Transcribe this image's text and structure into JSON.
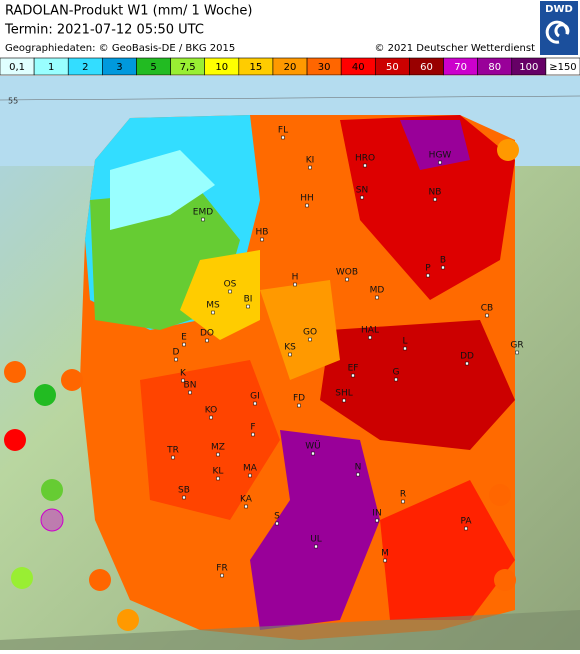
{
  "header": {
    "title": "RADOLAN-Produkt W1 (mm/ 1 Woche)",
    "termin": "Termin: 2021-07-12 05:50 UTC",
    "geodata": "Geographiedaten: © GeoBasis-DE / BKG 2015",
    "copyright": "© 2021 Deutscher Wetterdienst",
    "logo": "DWD"
  },
  "legend": [
    {
      "label": "0,1",
      "color": "#e0ffff"
    },
    {
      "label": "1",
      "color": "#99ffff"
    },
    {
      "label": "2",
      "color": "#33ddff"
    },
    {
      "label": "3",
      "color": "#0099dd"
    },
    {
      "label": "5",
      "color": "#22bb22"
    },
    {
      "label": "7,5",
      "color": "#99ee33"
    },
    {
      "label": "10",
      "color": "#ffff00"
    },
    {
      "label": "15",
      "color": "#ffcc00"
    },
    {
      "label": "20",
      "color": "#ff9900"
    },
    {
      "label": "30",
      "color": "#ff6600"
    },
    {
      "label": "40",
      "color": "#ff0000"
    },
    {
      "label": "50",
      "color": "#cc0000"
    },
    {
      "label": "60",
      "color": "#990000"
    },
    {
      "label": "70",
      "color": "#cc00cc"
    },
    {
      "label": "80",
      "color": "#990099"
    },
    {
      "label": "100",
      "color": "#660066"
    },
    {
      "label": "≥150",
      "color": "#ffffff"
    }
  ],
  "map": {
    "graticule_label": "55",
    "cities": [
      "FL",
      "KI",
      "HRO",
      "HGW",
      "SN",
      "NB",
      "HH",
      "EMD",
      "HB",
      "H",
      "WOB",
      "P",
      "B",
      "MD",
      "OS",
      "BI",
      "MS",
      "CB",
      "GO",
      "HAL",
      "L",
      "DD",
      "GR",
      "E",
      "DO",
      "KS",
      "EF",
      "G",
      "D",
      "K",
      "BN",
      "GI",
      "FD",
      "SHL",
      "KO",
      "F",
      "WÜ",
      "MZ",
      "TR",
      "KL",
      "MA",
      "N",
      "SB",
      "KA",
      "R",
      "IN",
      "PA",
      "S",
      "UL",
      "M",
      "FR"
    ]
  }
}
